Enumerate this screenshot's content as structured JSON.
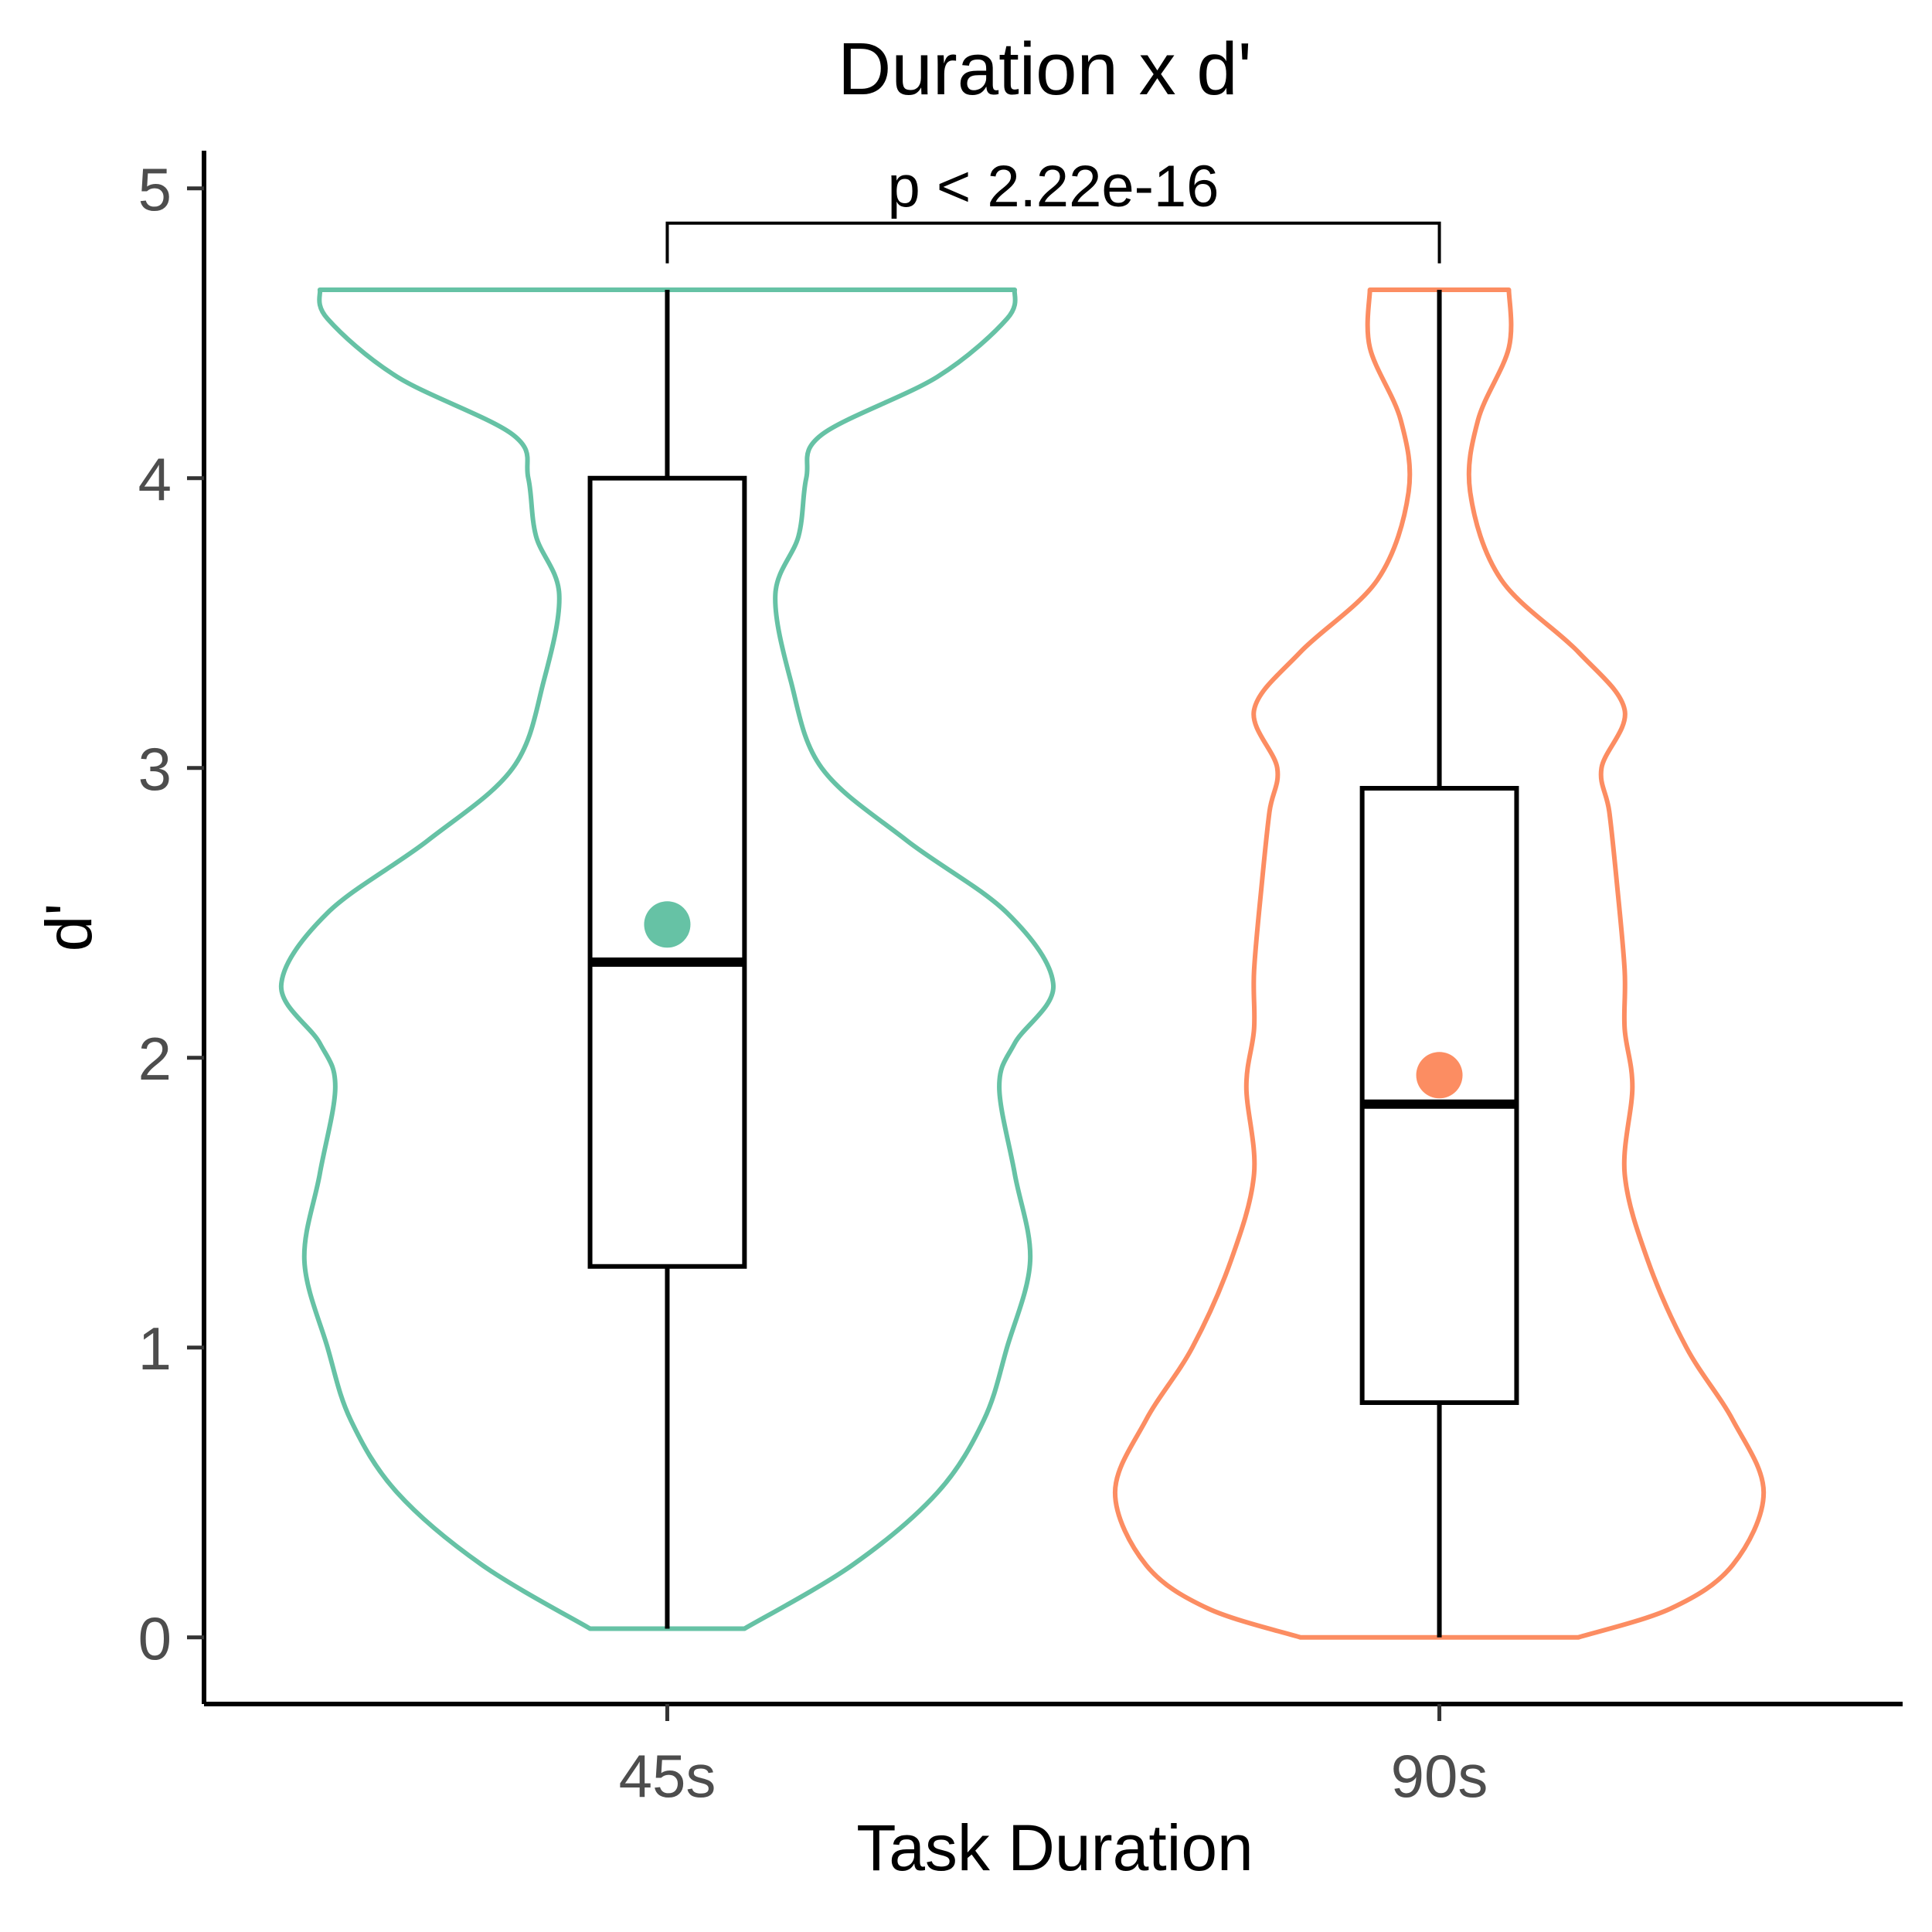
{
  "chart_data": {
    "type": "violin",
    "title": "Duration x d'",
    "xlabel": "Task Duration",
    "ylabel": "d'",
    "categories": [
      "45s",
      "90s"
    ],
    "ylim": [
      -0.23,
      5.13
    ],
    "yticks": [
      0,
      1,
      2,
      3,
      4,
      5
    ],
    "ytick_labels": [
      "0",
      "1",
      "2",
      "3",
      "4",
      "5"
    ],
    "grid": false,
    "legend": "none",
    "groups": [
      {
        "category": "45s",
        "color": "#66c2a5",
        "min": 0.03,
        "q1": 1.28,
        "median": 2.33,
        "q3": 4.0,
        "max": 4.65,
        "mean": 2.46,
        "density_half_width": [
          [
            0.03,
            0.1
          ],
          [
            0.25,
            0.24
          ],
          [
            0.5,
            0.35
          ],
          [
            0.75,
            0.41
          ],
          [
            1.0,
            0.44
          ],
          [
            1.3,
            0.47
          ],
          [
            1.6,
            0.45
          ],
          [
            1.9,
            0.43
          ],
          [
            2.05,
            0.45
          ],
          [
            2.25,
            0.5
          ],
          [
            2.5,
            0.44
          ],
          [
            2.75,
            0.31
          ],
          [
            3.0,
            0.2
          ],
          [
            3.3,
            0.16
          ],
          [
            3.6,
            0.14
          ],
          [
            3.8,
            0.17
          ],
          [
            4.0,
            0.18
          ],
          [
            4.15,
            0.2
          ],
          [
            4.35,
            0.35
          ],
          [
            4.55,
            0.44
          ],
          [
            4.65,
            0.45
          ]
        ]
      },
      {
        "category": "90s",
        "color": "#fc8d62",
        "min": 0.0,
        "q1": 0.81,
        "median": 1.84,
        "q3": 2.93,
        "max": 4.65,
        "mean": 1.94,
        "density_half_width": [
          [
            0.0,
            0.18
          ],
          [
            0.1,
            0.3
          ],
          [
            0.25,
            0.38
          ],
          [
            0.5,
            0.42
          ],
          [
            0.75,
            0.38
          ],
          [
            1.0,
            0.32
          ],
          [
            1.3,
            0.27
          ],
          [
            1.6,
            0.24
          ],
          [
            1.9,
            0.25
          ],
          [
            2.1,
            0.24
          ],
          [
            2.3,
            0.24
          ],
          [
            2.6,
            0.23
          ],
          [
            2.85,
            0.22
          ],
          [
            3.0,
            0.21
          ],
          [
            3.2,
            0.24
          ],
          [
            3.4,
            0.18
          ],
          [
            3.65,
            0.08
          ],
          [
            3.95,
            0.04
          ],
          [
            4.2,
            0.05
          ],
          [
            4.45,
            0.09
          ],
          [
            4.65,
            0.09
          ]
        ]
      }
    ],
    "annotations": [
      {
        "text": "p < 2.22e-16",
        "from": "45s",
        "to": "90s",
        "y": 4.88
      }
    ]
  }
}
